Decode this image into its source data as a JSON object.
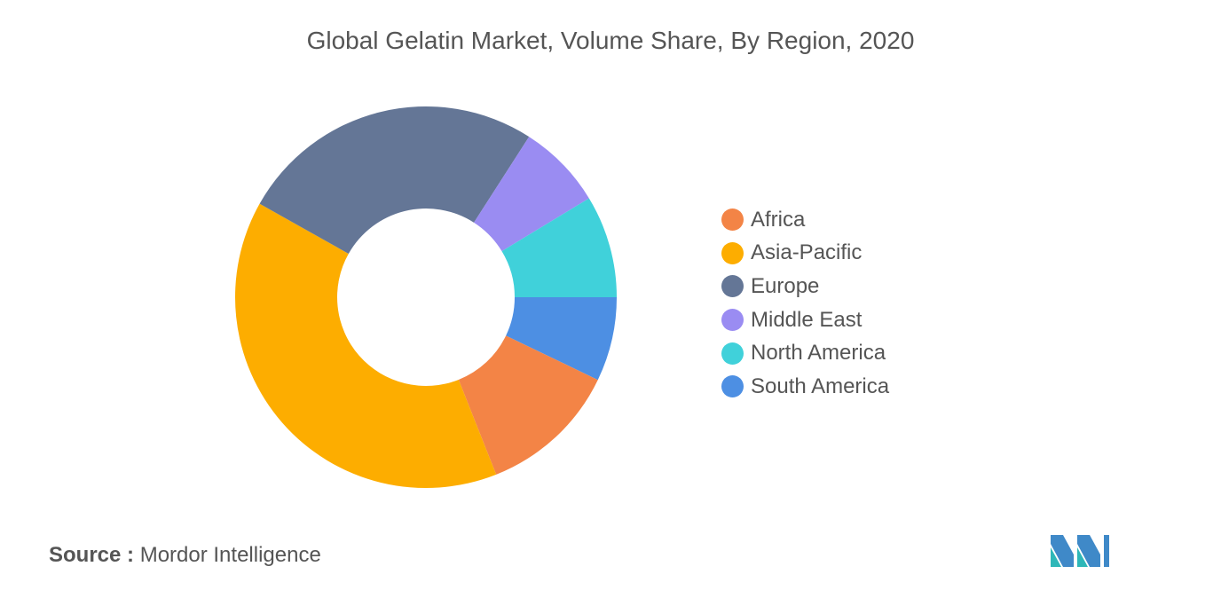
{
  "chart_data": {
    "type": "pie",
    "title": "Global Gelatin Market, Volume Share, By Region, 2020",
    "categories": [
      "Africa",
      "Asia-Pacific",
      "Europe",
      "Middle East",
      "North America",
      "South America"
    ],
    "values": [
      12.3,
      40.6,
      26.9,
      7.5,
      9.0,
      7.4
    ],
    "colors": [
      "#F38446",
      "#FDAD00",
      "#647696",
      "#9A8CF2",
      "#40D1DA",
      "#4D8FE3"
    ],
    "slice_order": [
      "South America",
      "Africa",
      "Asia-Pacific",
      "Europe",
      "Middle East",
      "North America"
    ],
    "donut": true,
    "legend_position": "right"
  },
  "source": {
    "label": "Source :",
    "text": "Mordor Intelligence"
  },
  "logo": {
    "icon": "mordor-intelligence-logo",
    "colors": [
      "#3F89C8",
      "#2EB7B8"
    ]
  }
}
